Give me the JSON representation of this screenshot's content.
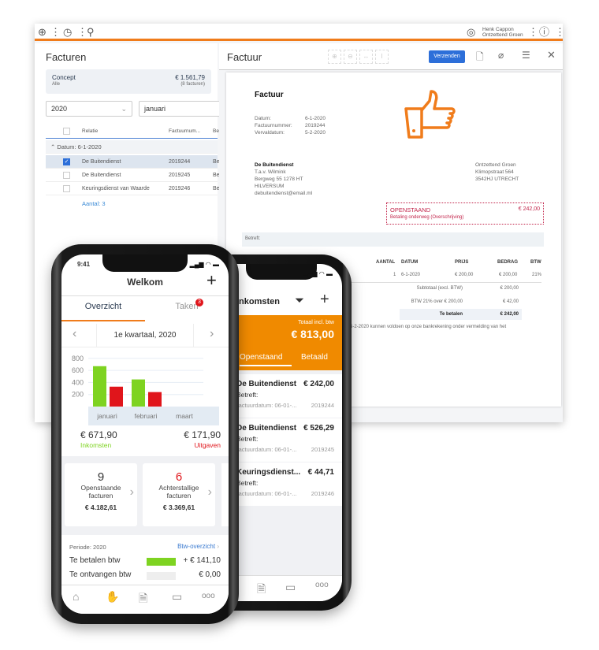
{
  "colors": {
    "accent": "#f07c1b",
    "primary": "#2d6fd9",
    "income": "#7ed321",
    "expense": "#e0151b",
    "alert": "#c2244a"
  },
  "desktop": {
    "toolbar": {
      "icons": [
        "plus-icon",
        "clock-icon",
        "search-icon"
      ],
      "user_name": "Henk Cappon",
      "company": "Ontzettend Groen"
    },
    "left": {
      "title": "Facturen",
      "concept": {
        "label": "Concept",
        "sub": "Alle",
        "amount": "€ 1.561,79",
        "count": "(8 facturen)"
      },
      "year": "2020",
      "month": "januari",
      "columns": [
        "Relatie",
        "Factuurnum...",
        "Be"
      ],
      "group": "Datum: 6-1-2020",
      "rows": [
        {
          "relatie": "De Buitendienst",
          "nummer": "2019244",
          "checked": true
        },
        {
          "relatie": "De Buitendienst",
          "nummer": "2019245",
          "checked": false
        },
        {
          "relatie": "Keuringsdienst van Waarde",
          "nummer": "2019246",
          "checked": false
        }
      ],
      "count": "Aantal: 3"
    },
    "right": {
      "title": "Factuur",
      "send": "Verzenden",
      "invoice": {
        "heading": "Factuur",
        "meta": [
          {
            "k": "Datum:",
            "v": "6-1-2020"
          },
          {
            "k": "Factuurnummer:",
            "v": "2019244"
          },
          {
            "k": "Vervaldatum:",
            "v": "5-2-2020"
          }
        ],
        "to": [
          "De Buitendienst",
          "T.a.v. Wilmink",
          "Bergweg 55 1278 HT",
          "HILVERSUM",
          "debuitendienst@email.ml"
        ],
        "from": [
          "Ontzettend Groen",
          "Klimopstraat 564",
          "3542HJ  UTRECHT"
        ],
        "status": "OPENSTAAND",
        "status_amount": "€ 242,00",
        "status_sub": "Betaling onderweg (Overschrijving)",
        "betreft": "Betreft:",
        "cols": [
          "AANTAL",
          "DATUM",
          "PRIJS",
          "BEDRAG",
          "BTW"
        ],
        "line": [
          "1",
          "6-1-2020",
          "€ 200,00",
          "€ 200,00",
          "21%"
        ],
        "subtotal_label": "Subtotaal (excl. BTW)",
        "subtotal": "€ 200,00",
        "vat_label": "BTW 21% over € 200,00",
        "vat": "€ 42,00",
        "total_label": "Te betalen",
        "total": "€ 242,00",
        "footer": "er 5-2-2020 kunnen voldoen op onze bankrekening onder vermelding van het"
      }
    }
  },
  "phone_front": {
    "time": "9:41",
    "title": "Welkom",
    "tabs": [
      "Overzicht",
      "Taken"
    ],
    "tasks_badge": "3",
    "period": "1e kwartaal, 2020",
    "income": "€ 671,90",
    "income_label": "Inkomsten",
    "expense": "€ 171,90",
    "expense_label": "Uitgaven",
    "cards": [
      {
        "count": "9",
        "label1": "Openstaande",
        "label2": "facturen",
        "amount": "€ 4.182,61"
      },
      {
        "count": "6",
        "label1": "Achterstallige",
        "label2": "facturen",
        "amount": "€ 3.369,61"
      }
    ],
    "periode": "Periode: 2020",
    "btw_link": "Btw-overzicht",
    "vat_rows": [
      {
        "label": "Te betalen btw",
        "value": "+ € 141,10"
      },
      {
        "label": "Te ontvangen btw",
        "value": "€ 0,00"
      }
    ],
    "nav": [
      "home-icon",
      "income-icon",
      "invoice-icon",
      "card-icon",
      "more-icon"
    ]
  },
  "chart_data": {
    "type": "bar",
    "categories": [
      "januari",
      "februari",
      "maart"
    ],
    "yticks": [
      200,
      400,
      600,
      800
    ],
    "ylim": [
      0,
      850
    ],
    "series": [
      {
        "color": "#7ed321",
        "values": [
          670,
          450,
          0
        ]
      },
      {
        "color": "#e0151b",
        "values": [
          330,
          240,
          0
        ]
      }
    ]
  },
  "phone_back": {
    "title": "Inkomsten",
    "total_label": "Totaal incl. btw",
    "total": "€ 813,00",
    "tabs": [
      "Openstaand",
      "Betaald"
    ],
    "items": [
      {
        "name": "De Buitendienst",
        "amount": "€ 242,00",
        "betreft": "Betreft:",
        "date": "Factuurdatum: 06-01-...",
        "nr": "2019244"
      },
      {
        "name": "De Buitendienst",
        "amount": "€ 526,29",
        "betreft": "Betreft:",
        "date": "Factuurdatum: 06-01-...",
        "nr": "2019245"
      },
      {
        "name": "Keuringsdienst...",
        "amount": "€ 44,71",
        "betreft": "Betreft:",
        "date": "Factuurdatum: 06-01-...",
        "nr": "2019246"
      }
    ]
  }
}
